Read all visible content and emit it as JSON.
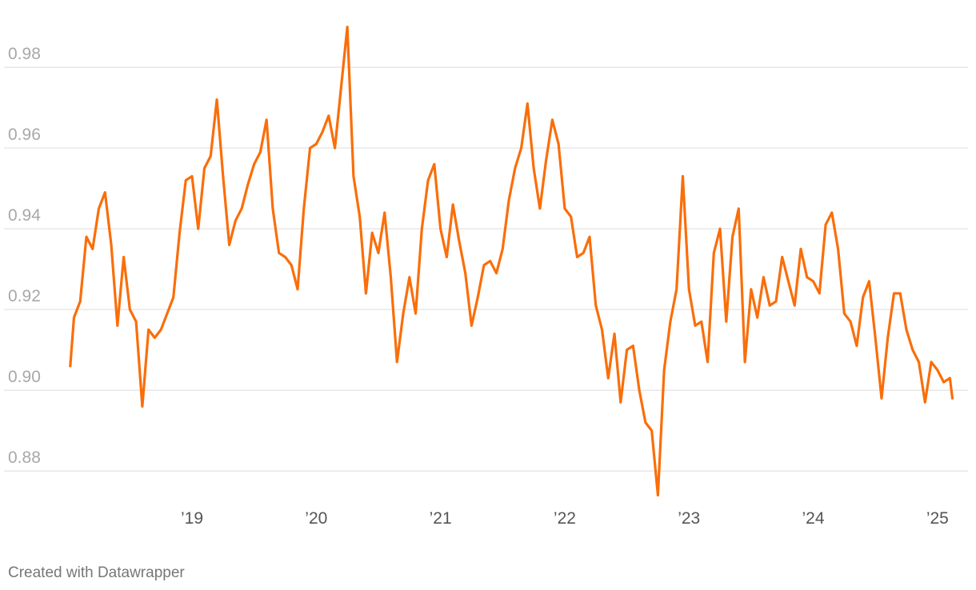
{
  "chart_data": {
    "type": "line",
    "credit": "Created with Datawrapper",
    "color": "#fa6e0a",
    "grid": true,
    "xlim": [
      2018.0,
      2025.2
    ],
    "ylim": [
      0.8725,
      0.9935
    ],
    "xticks": [
      {
        "value": 2019,
        "label": "’19"
      },
      {
        "value": 2020,
        "label": "’20"
      },
      {
        "value": 2021,
        "label": "’21"
      },
      {
        "value": 2022,
        "label": "’22"
      },
      {
        "value": 2023,
        "label": "’23"
      },
      {
        "value": 2024,
        "label": "’24"
      },
      {
        "value": 2025,
        "label": "’25"
      }
    ],
    "yticks": [
      0.88,
      {
        "value": 0.9,
        "label": "0.90"
      },
      0.92,
      0.94,
      0.96,
      0.98
    ],
    "x": [
      2018.02,
      2018.05,
      2018.1,
      2018.15,
      2018.2,
      2018.25,
      2018.3,
      2018.35,
      2018.4,
      2018.45,
      2018.5,
      2018.55,
      2018.6,
      2018.65,
      2018.7,
      2018.75,
      2018.8,
      2018.85,
      2018.9,
      2018.95,
      2019.0,
      2019.05,
      2019.1,
      2019.15,
      2019.2,
      2019.25,
      2019.3,
      2019.35,
      2019.4,
      2019.45,
      2019.5,
      2019.55,
      2019.6,
      2019.65,
      2019.7,
      2019.75,
      2019.8,
      2019.85,
      2019.9,
      2019.95,
      2020.0,
      2020.05,
      2020.1,
      2020.15,
      2020.2,
      2020.25,
      2020.3,
      2020.35,
      2020.4,
      2020.45,
      2020.5,
      2020.55,
      2020.6,
      2020.65,
      2020.7,
      2020.75,
      2020.8,
      2020.85,
      2020.9,
      2020.95,
      2021.0,
      2021.05,
      2021.1,
      2021.15,
      2021.2,
      2021.25,
      2021.3,
      2021.35,
      2021.4,
      2021.45,
      2021.5,
      2021.55,
      2021.6,
      2021.65,
      2021.7,
      2021.75,
      2021.8,
      2021.85,
      2021.9,
      2021.95,
      2022.0,
      2022.05,
      2022.1,
      2022.15,
      2022.2,
      2022.25,
      2022.3,
      2022.35,
      2022.4,
      2022.45,
      2022.5,
      2022.55,
      2022.6,
      2022.65,
      2022.7,
      2022.75,
      2022.8,
      2022.85,
      2022.9,
      2022.95,
      2023.0,
      2023.05,
      2023.1,
      2023.15,
      2023.2,
      2023.25,
      2023.3,
      2023.35,
      2023.4,
      2023.45,
      2023.5,
      2023.55,
      2023.6,
      2023.65,
      2023.7,
      2023.75,
      2023.8,
      2023.85,
      2023.9,
      2023.95,
      2024.0,
      2024.05,
      2024.1,
      2024.15,
      2024.2,
      2024.25,
      2024.3,
      2024.35,
      2024.4,
      2024.45,
      2024.5,
      2024.55,
      2024.6,
      2024.65,
      2024.7,
      2024.75,
      2024.8,
      2024.85,
      2024.9,
      2024.95,
      2025.0,
      2025.05,
      2025.1,
      2025.12
    ],
    "values": [
      0.906,
      0.918,
      0.922,
      0.938,
      0.935,
      0.945,
      0.949,
      0.936,
      0.916,
      0.933,
      0.92,
      0.917,
      0.896,
      0.915,
      0.913,
      0.915,
      0.919,
      0.923,
      0.939,
      0.952,
      0.953,
      0.94,
      0.955,
      0.958,
      0.972,
      0.953,
      0.936,
      0.942,
      0.945,
      0.951,
      0.956,
      0.959,
      0.967,
      0.945,
      0.934,
      0.933,
      0.931,
      0.925,
      0.945,
      0.96,
      0.961,
      0.964,
      0.968,
      0.96,
      0.975,
      0.99,
      0.953,
      0.943,
      0.924,
      0.939,
      0.934,
      0.944,
      0.928,
      0.907,
      0.919,
      0.928,
      0.919,
      0.94,
      0.952,
      0.956,
      0.94,
      0.933,
      0.946,
      0.937,
      0.929,
      0.916,
      0.923,
      0.931,
      0.932,
      0.929,
      0.935,
      0.947,
      0.955,
      0.96,
      0.971,
      0.955,
      0.945,
      0.957,
      0.967,
      0.961,
      0.945,
      0.943,
      0.933,
      0.934,
      0.938,
      0.921,
      0.915,
      0.903,
      0.914,
      0.897,
      0.91,
      0.911,
      0.9,
      0.892,
      0.89,
      0.874,
      0.905,
      0.917,
      0.925,
      0.953,
      0.925,
      0.916,
      0.917,
      0.907,
      0.934,
      0.94,
      0.917,
      0.938,
      0.945,
      0.907,
      0.925,
      0.918,
      0.928,
      0.921,
      0.922,
      0.933,
      0.927,
      0.921,
      0.935,
      0.928,
      0.927,
      0.924,
      0.941,
      0.944,
      0.935,
      0.919,
      0.917,
      0.911,
      0.923,
      0.927,
      0.913,
      0.898,
      0.913,
      0.924,
      0.924,
      0.915,
      0.91,
      0.907,
      0.897,
      0.907,
      0.905,
      0.902,
      0.903,
      0.898
    ]
  }
}
